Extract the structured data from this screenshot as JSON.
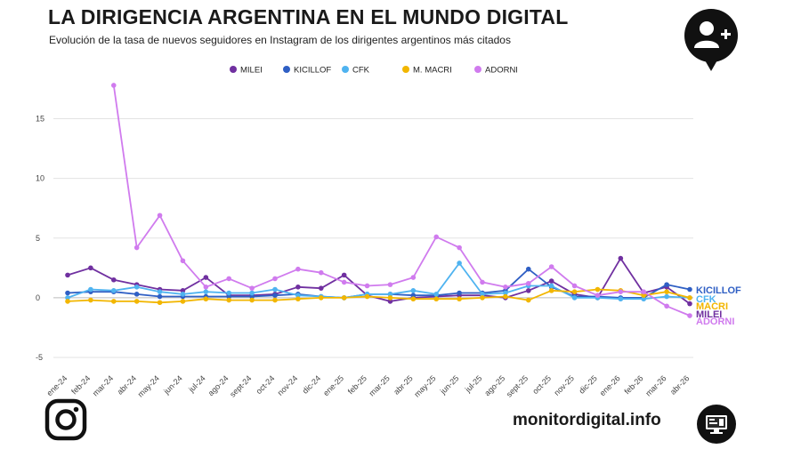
{
  "header": {
    "title": "LA DIRIGENCIA ARGENTINA EN EL MUNDO DIGITAL",
    "subtitle": "Evolución de la tasa de nuevos seguidores en Instagram de los dirigentes argentinos más citados"
  },
  "footer": {
    "site": "monitordigital.info",
    "social_icon": "instagram-icon",
    "brand_icon": "monitor-icon"
  },
  "badge_icon": "add-user-icon",
  "chart_data": {
    "type": "line",
    "xlabel": "",
    "ylabel": "",
    "ylim": [
      -5,
      17.5
    ],
    "yticks": [
      -5,
      0,
      5,
      10,
      15
    ],
    "grid": true,
    "legend_position": "top",
    "categories": [
      "ene-24",
      "feb-24",
      "mar-24",
      "abr-24",
      "may-24",
      "jun-24",
      "jul-24",
      "ago-24",
      "sept-24",
      "oct-24",
      "nov-24",
      "dic-24",
      "ene-25",
      "feb-25",
      "mar-25",
      "abr-25",
      "may-25",
      "jun-25",
      "jul-25",
      "ago-25",
      "sept-25",
      "oct-25",
      "nov-25",
      "dic-25",
      "ene-26",
      "feb-26",
      "mar-26",
      "abr-26"
    ],
    "series": [
      {
        "name": "MILEI",
        "color": "#7030A0",
        "values": [
          1.9,
          2.5,
          1.5,
          1.1,
          0.7,
          0.6,
          1.7,
          0.2,
          0.2,
          0.3,
          0.9,
          0.8,
          1.9,
          0.2,
          -0.3,
          0.0,
          0.1,
          0.2,
          0.2,
          0.0,
          0.6,
          1.4,
          0.3,
          0.0,
          3.3,
          0.4,
          0.9,
          -0.5
        ]
      },
      {
        "name": "KICILLOF",
        "color": "#2F5FC4",
        "values": [
          0.4,
          0.5,
          0.5,
          0.3,
          0.1,
          0.1,
          0.1,
          0.1,
          0.1,
          0.2,
          0.3,
          0.1,
          0.0,
          0.3,
          0.3,
          0.2,
          0.2,
          0.4,
          0.4,
          0.6,
          2.4,
          0.9,
          0.1,
          0.1,
          0.0,
          0.0,
          1.1,
          0.7
        ]
      },
      {
        "name": "CFK",
        "color": "#4FB3F0",
        "values": [
          0.0,
          0.7,
          0.6,
          0.9,
          0.5,
          0.3,
          0.5,
          0.4,
          0.4,
          0.7,
          0.2,
          0.1,
          0.0,
          0.3,
          0.3,
          0.6,
          0.3,
          2.9,
          0.3,
          0.4,
          1.0,
          1.0,
          0.0,
          0.0,
          -0.1,
          -0.1,
          0.1,
          0.0
        ]
      },
      {
        "name": "M. MACRI",
        "color": "#F2B600",
        "values": [
          -0.3,
          -0.2,
          -0.3,
          -0.3,
          -0.4,
          -0.3,
          -0.1,
          -0.2,
          -0.2,
          -0.2,
          -0.1,
          0.0,
          0.0,
          0.1,
          0.0,
          -0.1,
          -0.1,
          -0.1,
          0.0,
          0.1,
          -0.2,
          0.6,
          0.5,
          0.7,
          0.6,
          0.2,
          0.5,
          0.0
        ]
      },
      {
        "name": "ADORNI",
        "color": "#D07BEE",
        "values": [
          null,
          null,
          17.8,
          4.2,
          6.9,
          3.1,
          0.9,
          1.6,
          0.8,
          1.6,
          2.4,
          2.1,
          1.3,
          1.0,
          1.1,
          1.7,
          5.1,
          4.2,
          1.3,
          0.9,
          1.2,
          2.6,
          1.0,
          0.2,
          0.5,
          0.5,
          -0.7,
          -1.5
        ]
      }
    ],
    "end_labels": [
      {
        "text": "KICILLOF",
        "color": "#2F5FC4"
      },
      {
        "text": "CFK",
        "color": "#4FB3F0"
      },
      {
        "text": "MACRI",
        "color": "#F2B600"
      },
      {
        "text": "MILEI",
        "color": "#7030A0"
      },
      {
        "text": "ADORNI",
        "color": "#D07BEE"
      }
    ]
  }
}
